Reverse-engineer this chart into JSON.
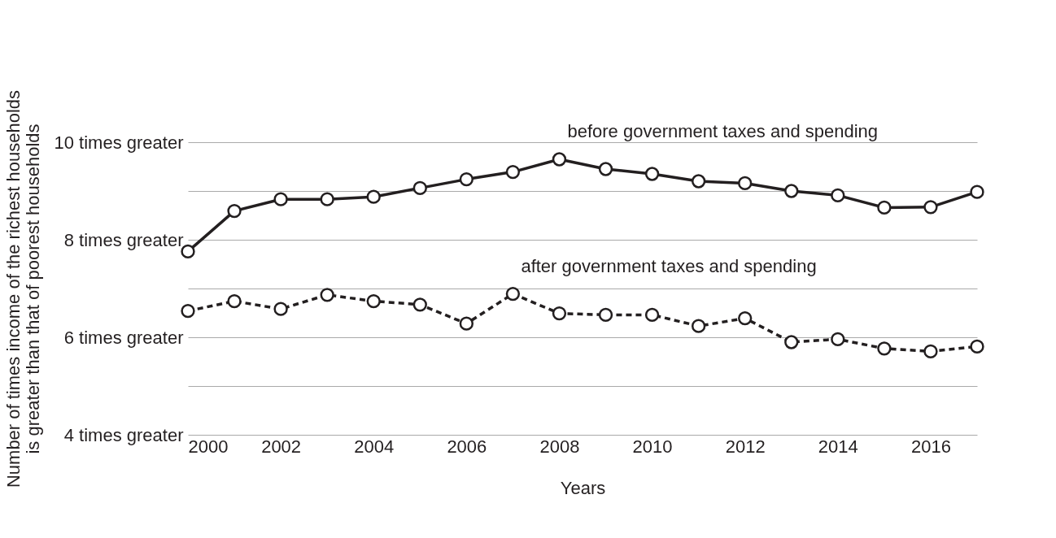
{
  "chart_data": {
    "type": "line",
    "xlabel": "Years",
    "ylabel": "Number of times income of the richest households\nis greater than that of poorest households",
    "x": [
      2000,
      2001,
      2002,
      2003,
      2004,
      2005,
      2006,
      2007,
      2008,
      2009,
      2010,
      2011,
      2012,
      2013,
      2014,
      2015,
      2016,
      2017
    ],
    "series": [
      {
        "name": "before government taxes and spending",
        "color": "#231f20",
        "line_style": "solid",
        "values": [
          7.76,
          8.59,
          8.83,
          8.83,
          8.88,
          9.06,
          9.24,
          9.39,
          9.65,
          9.45,
          9.35,
          9.2,
          9.16,
          9.0,
          8.91,
          8.66,
          8.67,
          8.98
        ]
      },
      {
        "name": "after government taxes and spending",
        "color": "#231f20",
        "line_style": "dashed",
        "values": [
          6.54,
          6.74,
          6.58,
          6.87,
          6.74,
          6.67,
          6.28,
          6.89,
          6.49,
          6.46,
          6.46,
          6.23,
          6.39,
          5.9,
          5.96,
          5.77,
          5.71,
          5.81
        ]
      }
    ],
    "xlim": [
      2000,
      2017
    ],
    "xticks": [
      2000,
      2002,
      2004,
      2006,
      2008,
      2010,
      2012,
      2014,
      2016
    ],
    "ylim": [
      4,
      10
    ],
    "yticks": [
      {
        "value": 4,
        "label": "4 times greater"
      },
      {
        "value": 5,
        "label": null
      },
      {
        "value": 6,
        "label": "6 times greater"
      },
      {
        "value": 7,
        "label": null
      },
      {
        "value": 8,
        "label": "8 times greater"
      },
      {
        "value": 9,
        "label": null
      },
      {
        "value": 10,
        "label": "10 times greater"
      }
    ],
    "grid": "y",
    "marker": "circle"
  }
}
